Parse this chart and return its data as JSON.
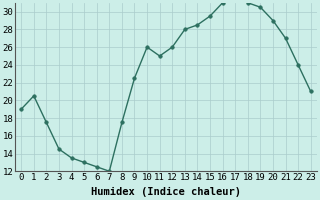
{
  "x": [
    0,
    1,
    2,
    3,
    4,
    5,
    6,
    7,
    8,
    9,
    10,
    11,
    12,
    13,
    14,
    15,
    16,
    17,
    18,
    19,
    20,
    21,
    22,
    23
  ],
  "y": [
    19.0,
    20.5,
    17.5,
    14.5,
    13.5,
    13.0,
    12.5,
    12.0,
    17.5,
    22.5,
    26.0,
    25.0,
    26.0,
    28.0,
    28.5,
    29.5,
    31.0,
    31.5,
    31.0,
    30.5,
    29.0,
    27.0,
    24.0,
    21.0
  ],
  "line_color": "#2d7060",
  "marker_color": "#2d7060",
  "bg_color": "#cceee8",
  "grid_color": "#aacccc",
  "xlabel": "Humidex (Indice chaleur)",
  "ylim": [
    12,
    31
  ],
  "xlim": [
    -0.5,
    23.5
  ],
  "yticks": [
    12,
    14,
    16,
    18,
    20,
    22,
    24,
    26,
    28,
    30
  ],
  "xticks": [
    0,
    1,
    2,
    3,
    4,
    5,
    6,
    7,
    8,
    9,
    10,
    11,
    12,
    13,
    14,
    15,
    16,
    17,
    18,
    19,
    20,
    21,
    22,
    23
  ],
  "xlabel_fontsize": 7.5,
  "tick_fontsize": 6.5,
  "line_width": 1.0,
  "marker_size": 2.5
}
